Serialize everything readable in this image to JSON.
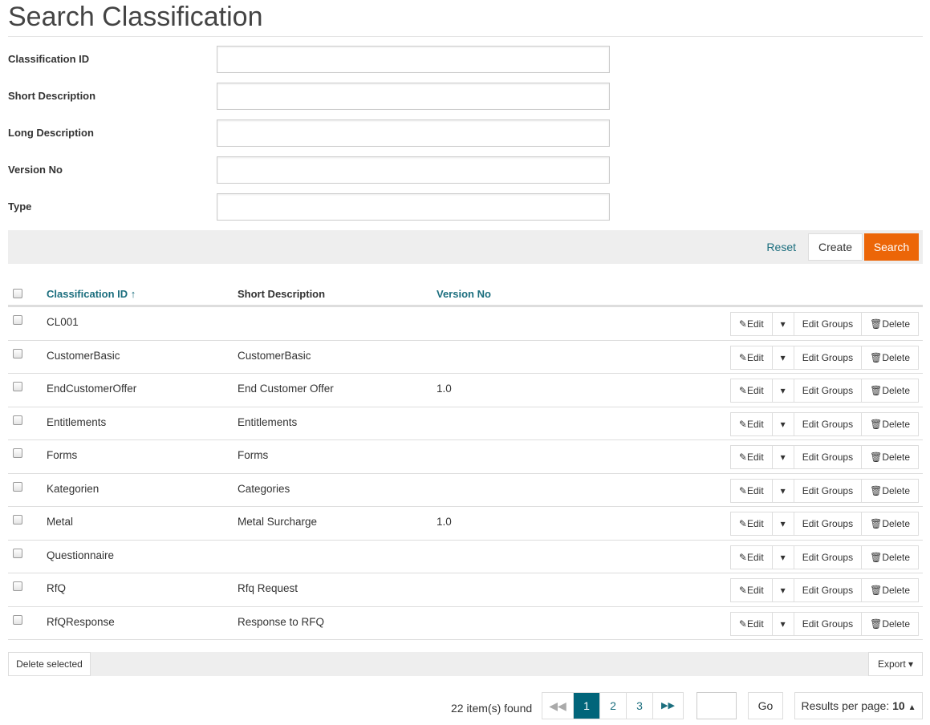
{
  "title": "Search Classification",
  "form": [
    {
      "label": "Classification ID",
      "value": ""
    },
    {
      "label": "Short Description",
      "value": ""
    },
    {
      "label": "Long Description",
      "value": ""
    },
    {
      "label": "Version No",
      "value": ""
    },
    {
      "label": "Type",
      "value": ""
    }
  ],
  "actions": {
    "reset": "Reset",
    "create": "Create",
    "search": "Search",
    "accent": "#ec6608"
  },
  "table": {
    "headers": {
      "id": "Classification ID",
      "sort_icon": "↑",
      "short": "Short Description",
      "version": "Version No"
    },
    "row_actions": {
      "edit": "Edit",
      "groups": "Edit Groups",
      "delete": "Delete"
    },
    "rows": [
      {
        "id": "CL001",
        "short": "",
        "version": ""
      },
      {
        "id": "CustomerBasic",
        "short": "CustomerBasic",
        "version": ""
      },
      {
        "id": "EndCustomerOffer",
        "short": "End Customer Offer",
        "version": "1.0"
      },
      {
        "id": "Entitlements",
        "short": "Entitlements",
        "version": ""
      },
      {
        "id": "Forms",
        "short": "Forms",
        "version": ""
      },
      {
        "id": "Kategorien",
        "short": "Categories",
        "version": ""
      },
      {
        "id": "Metal",
        "short": "Metal Surcharge",
        "version": "1.0"
      },
      {
        "id": "Questionnaire",
        "short": "",
        "version": ""
      },
      {
        "id": "RfQ",
        "short": "Rfq Request",
        "version": ""
      },
      {
        "id": "RfQResponse",
        "short": "Response to RFQ",
        "version": ""
      }
    ]
  },
  "footer": {
    "delete_selected": "Delete selected",
    "export": "Export",
    "found": "22 item(s) found",
    "pages": [
      "1",
      "2",
      "3"
    ],
    "current_page": "1",
    "go": "Go",
    "per_page_label": "Results per page:",
    "per_page": "10",
    "page_color": "#01657a"
  }
}
